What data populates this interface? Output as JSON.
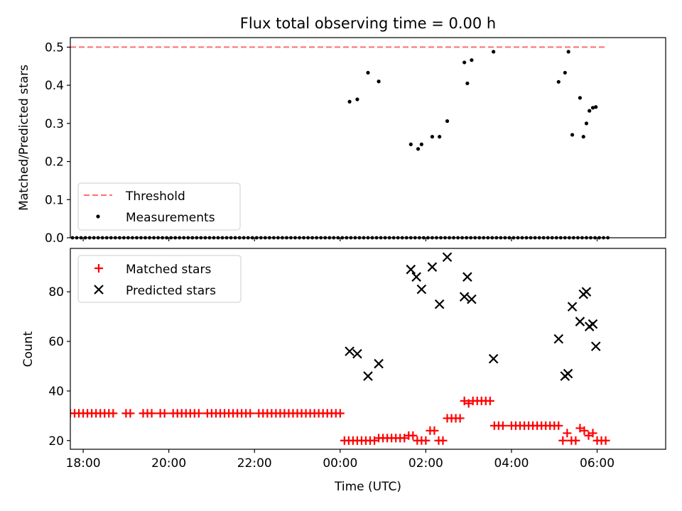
{
  "chart_data": [
    {
      "type": "scatter",
      "title": "Flux total observing time = 0.00 h",
      "xlabel": "",
      "ylabel": "Matched/Predicted stars",
      "xlim": [
        -6.3,
        7.6
      ],
      "ylim": [
        0,
        0.525
      ],
      "yticks": [
        0.0,
        0.1,
        0.2,
        0.3,
        0.4,
        0.5
      ],
      "ytick_labels": [
        "0.0",
        "0.1",
        "0.2",
        "0.3",
        "0.4",
        "0.5"
      ],
      "threshold": {
        "name": "Threshold",
        "value": 0.5,
        "x_start": -6.3,
        "x_end": 6.2,
        "color": "#ff6f6f"
      },
      "series": [
        {
          "name": "Measurements",
          "color": "#000000",
          "x": [
            0.22,
            0.4,
            0.65,
            0.9,
            1.65,
            1.82,
            1.9,
            2.15,
            2.32,
            2.5,
            2.9,
            2.97,
            3.07,
            3.58,
            5.1,
            5.25,
            5.33,
            5.42,
            5.6,
            5.68,
            5.75,
            5.82,
            5.9,
            5.97
          ],
          "y": [
            0.357,
            0.363,
            0.433,
            0.41,
            0.245,
            0.233,
            0.245,
            0.265,
            0.265,
            0.306,
            0.46,
            0.405,
            0.466,
            0.488,
            0.409,
            0.433,
            0.488,
            0.27,
            0.367,
            0.265,
            0.3,
            0.333,
            0.341,
            0.343
          ]
        },
        {
          "name": "",
          "color": "#000000",
          "x": [
            -6.35,
            -6.25,
            -6.15,
            -6.05,
            -5.95,
            -5.85,
            -5.75,
            -5.65,
            -5.55,
            -5.45,
            -5.35,
            -5.25,
            -5.15,
            -5.05,
            -4.95,
            -4.85,
            -4.75,
            -4.65,
            -4.55,
            -4.45,
            -4.35,
            -4.25,
            -4.15,
            -4.05,
            -3.95,
            -3.85,
            -3.75,
            -3.65,
            -3.55,
            -3.45,
            -3.35,
            -3.25,
            -3.15,
            -3.05,
            -2.95,
            -2.85,
            -2.75,
            -2.65,
            -2.55,
            -2.45,
            -2.35,
            -2.25,
            -2.15,
            -2.05,
            -1.95,
            -1.85,
            -1.75,
            -1.65,
            -1.55,
            -1.45,
            -1.35,
            -1.25,
            -1.15,
            -1.05,
            -0.95,
            -0.85,
            -0.75,
            -0.65,
            -0.55,
            -0.45,
            -0.35,
            -0.25,
            -0.15,
            -0.05,
            0.05,
            0.15,
            0.25,
            0.35,
            0.45,
            0.55,
            0.65,
            0.75,
            0.85,
            0.95,
            1.05,
            1.15,
            1.25,
            1.35,
            1.45,
            1.55,
            1.65,
            1.75,
            1.85,
            1.95,
            2.05,
            2.15,
            2.25,
            2.35,
            2.45,
            2.55,
            2.65,
            2.75,
            2.85,
            2.95,
            3.05,
            3.15,
            3.25,
            3.35,
            3.45,
            3.55,
            3.65,
            3.75,
            3.85,
            3.95,
            4.05,
            4.15,
            4.25,
            4.35,
            4.45,
            4.55,
            4.65,
            4.75,
            4.85,
            4.95,
            5.05,
            5.15,
            5.25,
            5.35,
            5.45,
            5.55,
            5.65,
            5.75,
            5.85,
            5.95,
            6.05,
            6.15,
            6.25
          ],
          "y": [
            0,
            0,
            0,
            0,
            0,
            0,
            0,
            0,
            0,
            0,
            0,
            0,
            0,
            0,
            0,
            0,
            0,
            0,
            0,
            0,
            0,
            0,
            0,
            0,
            0,
            0,
            0,
            0,
            0,
            0,
            0,
            0,
            0,
            0,
            0,
            0,
            0,
            0,
            0,
            0,
            0,
            0,
            0,
            0,
            0,
            0,
            0,
            0,
            0,
            0,
            0,
            0,
            0,
            0,
            0,
            0,
            0,
            0,
            0,
            0,
            0,
            0,
            0,
            0,
            0,
            0,
            0,
            0,
            0,
            0,
            0,
            0,
            0,
            0,
            0,
            0,
            0,
            0,
            0,
            0,
            0,
            0,
            0,
            0,
            0,
            0,
            0,
            0,
            0,
            0,
            0,
            0,
            0,
            0,
            0,
            0,
            0,
            0,
            0,
            0,
            0,
            0,
            0,
            0,
            0,
            0,
            0,
            0,
            0,
            0,
            0,
            0,
            0,
            0,
            0,
            0,
            0,
            0,
            0,
            0,
            0,
            0,
            0,
            0,
            0,
            0,
            0
          ]
        }
      ],
      "legend": {
        "placement": "lower left",
        "entries": [
          "Threshold",
          "Measurements"
        ]
      }
    },
    {
      "type": "scatter",
      "title": "",
      "xlabel": "Time (UTC)",
      "ylabel": "Count",
      "xlim": [
        -6.3,
        7.6
      ],
      "ylim": [
        16.5,
        97.5
      ],
      "xticks": [
        -6,
        -4,
        -2,
        0,
        2,
        4,
        6
      ],
      "xtick_labels": [
        "18:00",
        "20:00",
        "22:00",
        "00:00",
        "02:00",
        "04:00",
        "06:00"
      ],
      "yticks": [
        20,
        40,
        60,
        80
      ],
      "ytick_labels": [
        "20",
        "40",
        "60",
        "80"
      ],
      "series": [
        {
          "name": "Matched stars",
          "marker": "plus",
          "color": "#ff0000",
          "x": [
            -6.3,
            -6.2,
            -6.1,
            -6.0,
            -5.9,
            -5.8,
            -5.7,
            -5.6,
            -5.5,
            -5.4,
            -5.3,
            -5.0,
            -4.9,
            -4.6,
            -4.5,
            -4.4,
            -4.2,
            -4.1,
            -3.9,
            -3.8,
            -3.7,
            -3.6,
            -3.5,
            -3.4,
            -3.3,
            -3.1,
            -3.0,
            -2.9,
            -2.8,
            -2.7,
            -2.6,
            -2.5,
            -2.4,
            -2.3,
            -2.2,
            -2.1,
            -1.9,
            -1.8,
            -1.7,
            -1.6,
            -1.5,
            -1.4,
            -1.3,
            -1.2,
            -1.1,
            -1.0,
            -0.9,
            -0.8,
            -0.7,
            -0.6,
            -0.5,
            -0.4,
            -0.3,
            -0.2,
            -0.1,
            0.0,
            0.1,
            0.2,
            0.3,
            0.4,
            0.5,
            0.6,
            0.7,
            0.8,
            0.9,
            1.0,
            1.1,
            1.2,
            1.3,
            1.4,
            1.5,
            1.6,
            1.7,
            1.8,
            1.9,
            2.0,
            2.1,
            2.2,
            2.3,
            2.4,
            2.5,
            2.6,
            2.7,
            2.8,
            2.9,
            3.0,
            3.1,
            3.2,
            3.3,
            3.4,
            3.5,
            3.6,
            3.7,
            3.8,
            4.0,
            4.1,
            4.2,
            4.3,
            4.4,
            4.5,
            4.6,
            4.7,
            4.8,
            4.9,
            5.0,
            5.1,
            5.2,
            5.3,
            5.4,
            5.5,
            5.6,
            5.7,
            5.8,
            5.9,
            6.0,
            6.1,
            6.2
          ],
          "y": [
            31,
            31,
            31,
            31,
            31,
            31,
            31,
            31,
            31,
            31,
            31,
            31,
            31,
            31,
            31,
            31,
            31,
            31,
            31,
            31,
            31,
            31,
            31,
            31,
            31,
            31,
            31,
            31,
            31,
            31,
            31,
            31,
            31,
            31,
            31,
            31,
            31,
            31,
            31,
            31,
            31,
            31,
            31,
            31,
            31,
            31,
            31,
            31,
            31,
            31,
            31,
            31,
            31,
            31,
            31,
            31,
            20,
            20,
            20,
            20,
            20,
            20,
            20,
            20,
            21,
            21,
            21,
            21,
            21,
            21,
            21,
            22,
            22,
            20,
            20,
            20,
            24,
            24,
            20,
            20,
            29,
            29,
            29,
            29,
            36,
            35,
            36,
            36,
            36,
            36,
            36,
            26,
            26,
            26,
            26,
            26,
            26,
            26,
            26,
            26,
            26,
            26,
            26,
            26,
            26,
            26,
            20,
            23,
            20,
            20,
            25,
            24,
            22,
            23,
            20,
            20,
            20
          ]
        },
        {
          "name": "Predicted stars",
          "marker": "x",
          "color": "#000000",
          "x": [
            0.22,
            0.4,
            0.65,
            0.9,
            1.65,
            1.78,
            1.9,
            2.15,
            2.32,
            2.5,
            2.9,
            2.97,
            3.07,
            3.58,
            5.1,
            5.25,
            5.32,
            5.42,
            5.6,
            5.68,
            5.75,
            5.82,
            5.9,
            5.97
          ],
          "y": [
            56,
            55,
            46,
            51,
            89,
            86,
            81,
            90,
            75,
            94,
            78,
            86,
            77,
            53,
            61,
            46,
            47,
            74,
            68,
            79,
            80,
            66,
            67,
            58
          ]
        }
      ],
      "legend": {
        "placement": "upper left",
        "entries": [
          "Matched stars",
          "Predicted stars"
        ]
      }
    }
  ]
}
